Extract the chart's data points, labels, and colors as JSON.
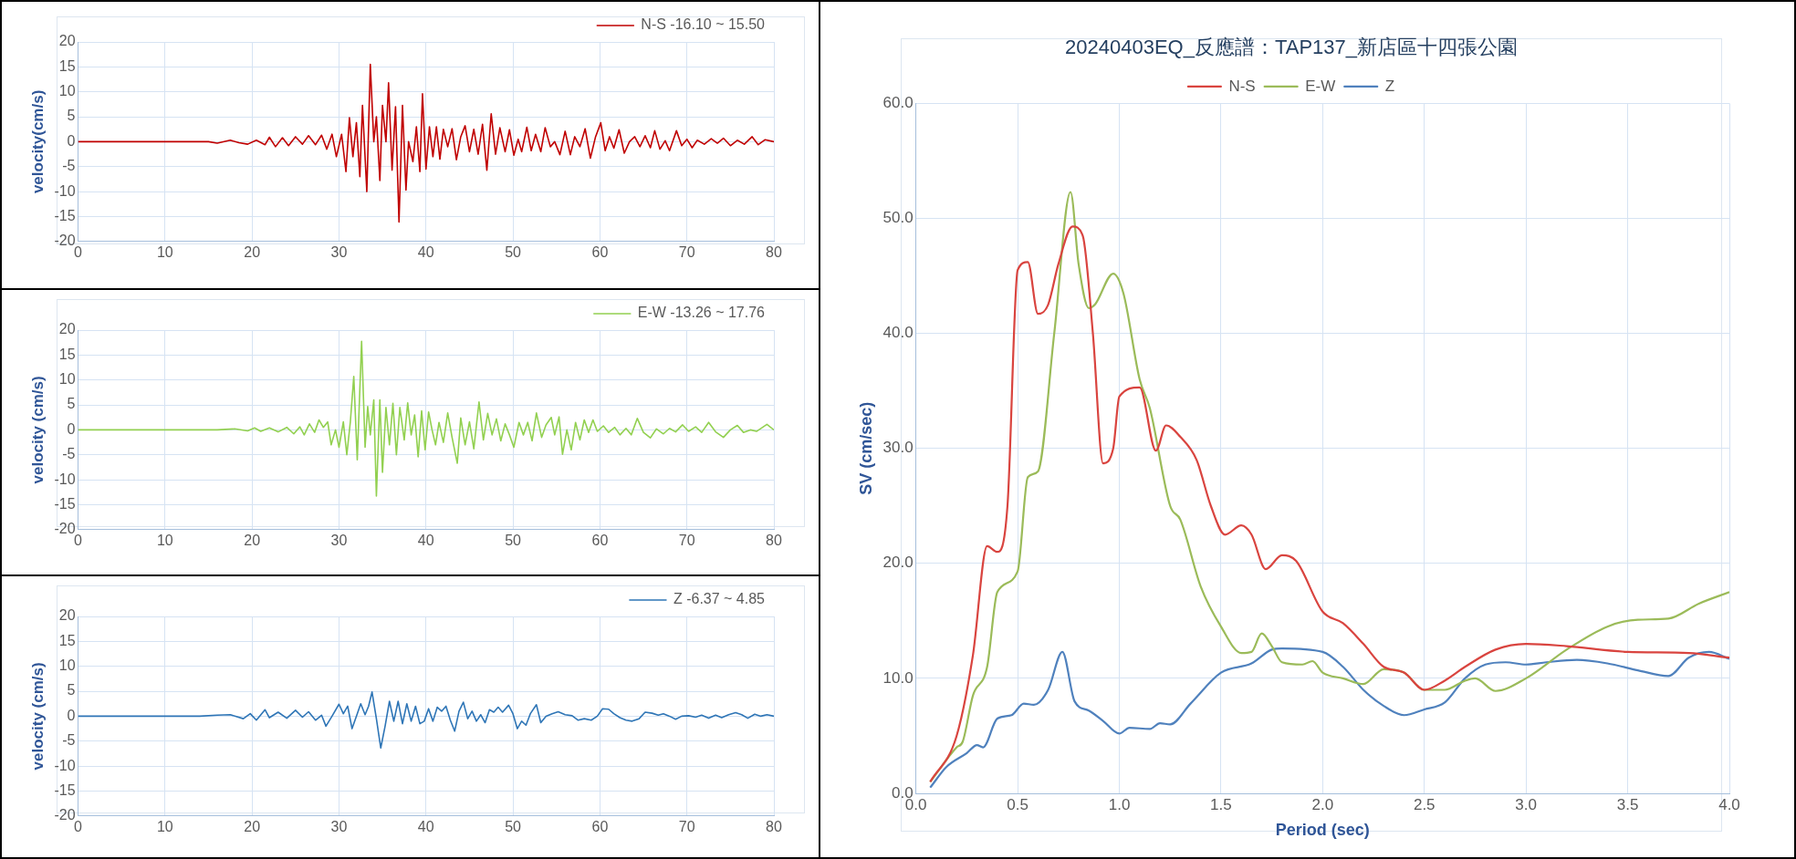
{
  "chart_data": [
    {
      "type": "line",
      "ylabel": "velocity(cm/s)",
      "xlim": [
        0,
        80
      ],
      "xticks": [
        0,
        10,
        20,
        30,
        40,
        50,
        60,
        70,
        80
      ],
      "ylim": [
        -20,
        20
      ],
      "yticks": [
        -20,
        -15,
        -10,
        -5,
        0,
        5,
        10,
        15,
        20
      ],
      "grid": true,
      "legend": "top right",
      "marker": "none",
      "line_style": "solid",
      "series": [
        {
          "name": "N-S -16.10 ~ 15.50",
          "color": "#c00000",
          "x": [
            0,
            15,
            16,
            17.5,
            18.5,
            19.5,
            20.5,
            21.5,
            22,
            22.7,
            23.5,
            24.2,
            25,
            25.8,
            26.5,
            27.3,
            28,
            28.6,
            29.2,
            29.7,
            30.3,
            30.8,
            31.2,
            31.6,
            32,
            32.4,
            32.7,
            33.2,
            33.6,
            34,
            34.3,
            34.7,
            35,
            35.4,
            35.7,
            36.1,
            36.5,
            36.9,
            37.3,
            37.7,
            38,
            38.5,
            38.9,
            39.3,
            39.6,
            40,
            40.4,
            40.8,
            41.2,
            41.6,
            42,
            42.5,
            43,
            43.5,
            44,
            44.5,
            45,
            45.5,
            46,
            46.5,
            47,
            47.5,
            48,
            48.5,
            49.1,
            49.6,
            50.1,
            50.6,
            51,
            51.6,
            52.1,
            52.6,
            53.2,
            53.7,
            54.3,
            54.8,
            55.4,
            56,
            56.6,
            57.1,
            57.7,
            58.3,
            58.9,
            59.5,
            60.1,
            60.6,
            61.1,
            61.6,
            62.2,
            62.8,
            63.4,
            64,
            64.6,
            65.2,
            65.8,
            66.3,
            66.9,
            67.5,
            68,
            68.8,
            69.4,
            70,
            70.6,
            71.2,
            72,
            72.8,
            73.5,
            74.2,
            75,
            75.8,
            76.6,
            77.5,
            78.2,
            79,
            80
          ],
          "values": [
            0,
            0,
            -0.3,
            0.3,
            -0.2,
            -0.5,
            0.3,
            -0.6,
            0.9,
            -1,
            0.8,
            -0.8,
            1,
            -0.5,
            1.2,
            -0.6,
            1.3,
            -1.5,
            1.5,
            -3,
            1.5,
            -6,
            4.8,
            -3,
            3.8,
            -7,
            7.3,
            -10,
            15.5,
            0,
            5,
            -7.8,
            7.3,
            0,
            11.8,
            -5.7,
            7,
            -16.1,
            7.3,
            -9.7,
            0,
            -4,
            3,
            -6,
            9.6,
            -5.5,
            3,
            -3,
            3,
            -3.5,
            2.5,
            -1,
            2.6,
            -3.6,
            1,
            3.2,
            -2,
            2.5,
            -2.5,
            3.5,
            -5.7,
            5.6,
            -2.5,
            2.8,
            -2,
            2.4,
            -2.7,
            0.5,
            -2,
            2.9,
            -1.8,
            1.5,
            -2,
            2.8,
            -1,
            0,
            -2.6,
            2.1,
            -2.6,
            1,
            -1,
            2.6,
            -3.3,
            1,
            3.8,
            -1.8,
            1,
            -1.3,
            2.4,
            -2.3,
            0,
            1,
            -1,
            1.2,
            -1.2,
            2.2,
            -1.5,
            0.2,
            -1.8,
            2.2,
            -0.8,
            0.5,
            -1.2,
            0.3,
            -0.5,
            0.6,
            -0.3,
            0.7,
            -0.8,
            0.3,
            -0.5,
            1,
            -0.6,
            0.4,
            0
          ]
        }
      ]
    },
    {
      "type": "line",
      "ylabel": "velocity (cm/s)",
      "xlim": [
        0,
        80
      ],
      "xticks": [
        0,
        10,
        20,
        30,
        40,
        50,
        60,
        70,
        80
      ],
      "ylim": [
        -20,
        20
      ],
      "yticks": [
        -20,
        -15,
        -10,
        -5,
        0,
        5,
        10,
        15,
        20
      ],
      "grid": true,
      "legend": "top right",
      "marker": "none",
      "line_style": "solid",
      "series": [
        {
          "name": "E-W -13.26 ~ 17.76",
          "color": "#92d050",
          "x": [
            0,
            16,
            18,
            19.5,
            20.3,
            21,
            22,
            23,
            24,
            24.8,
            25.5,
            26,
            26.6,
            27.2,
            27.7,
            28.2,
            28.7,
            29.1,
            29.6,
            30,
            30.5,
            30.9,
            31.3,
            31.7,
            32.1,
            32.6,
            33,
            33.3,
            33.6,
            34,
            34.3,
            34.7,
            35,
            35.4,
            35.8,
            36.2,
            36.6,
            37,
            37.5,
            37.9,
            38.3,
            38.7,
            39.1,
            39.5,
            39.9,
            40.3,
            40.7,
            41.1,
            41.5,
            42,
            42.5,
            43,
            43.6,
            44,
            44.5,
            45,
            45.5,
            46.1,
            46.6,
            47.1,
            47.6,
            48.1,
            48.6,
            49.1,
            49.6,
            50.1,
            50.7,
            51.2,
            51.7,
            52.2,
            52.7,
            53.3,
            53.8,
            54.4,
            54.8,
            55.3,
            55.7,
            56.2,
            56.7,
            57.2,
            57.7,
            58.2,
            58.7,
            59.2,
            59.7,
            60.4,
            61,
            61.7,
            62.3,
            63,
            63.6,
            64.3,
            65,
            65.8,
            66.5,
            67.3,
            68,
            68.7,
            69.5,
            70.2,
            71,
            71.7,
            72.5,
            73.3,
            74.2,
            75,
            75.8,
            76.5,
            77.3,
            78,
            79.2,
            80
          ],
          "values": [
            0,
            0,
            0.2,
            -0.2,
            0.4,
            -0.3,
            0.4,
            -0.4,
            0.5,
            -0.8,
            0.6,
            -1,
            1.2,
            -0.5,
            2,
            0.5,
            1.6,
            -3,
            0,
            -3.5,
            1.6,
            -5,
            1.5,
            10.7,
            -6,
            17.76,
            -3.5,
            4.7,
            -1,
            6,
            -13.26,
            6,
            -8.5,
            4.5,
            -3,
            5.3,
            -5,
            4.5,
            -2,
            5.4,
            -1,
            3,
            -5.4,
            3.8,
            -4,
            3.6,
            0,
            -3,
            1.5,
            -2.5,
            3.4,
            -1.5,
            -6.7,
            2.4,
            -3,
            1.6,
            -3.8,
            5.6,
            -2,
            3.3,
            -1,
            2.2,
            -2.2,
            1.2,
            -1,
            -3.5,
            1.5,
            -1,
            1.5,
            -2.2,
            3.4,
            -1.5,
            1,
            2.5,
            -1,
            2.6,
            -4.9,
            0,
            -4,
            1.5,
            -2,
            2,
            -0.5,
            2,
            -0.3,
            0.8,
            -0.5,
            0.5,
            -1,
            0.3,
            -1,
            2.3,
            -0.5,
            -1.6,
            0.2,
            -0.8,
            0.3,
            -0.4,
            1,
            -0.3,
            0.6,
            -0.5,
            1.5,
            -0.4,
            -1.5,
            0,
            0.9,
            -0.5,
            0,
            -0.3,
            1.1,
            0
          ]
        }
      ]
    },
    {
      "type": "line",
      "ylabel": "velocity (cm/s)",
      "xlim": [
        0,
        80
      ],
      "xticks": [
        0,
        10,
        20,
        30,
        40,
        50,
        60,
        70,
        80
      ],
      "ylim": [
        -20,
        20
      ],
      "yticks": [
        -20,
        -15,
        -10,
        -5,
        0,
        5,
        10,
        15,
        20
      ],
      "grid": true,
      "legend": "top right",
      "marker": "none",
      "line_style": "solid",
      "series": [
        {
          "name": "Z -6.37 ~ 4.85",
          "color": "#2e75b6",
          "x": [
            0,
            14,
            16,
            17.5,
            19,
            19.8,
            20.5,
            21.5,
            22,
            23,
            24,
            25,
            25.8,
            26.5,
            27.3,
            28,
            28.5,
            29.2,
            30,
            30.5,
            31,
            31.5,
            32,
            32.5,
            33,
            33.4,
            33.8,
            34.3,
            34.8,
            35.3,
            35.8,
            36.3,
            36.8,
            37.3,
            37.8,
            38.3,
            38.8,
            39.3,
            39.8,
            40.3,
            40.8,
            41.3,
            41.8,
            42.3,
            42.8,
            43.3,
            43.8,
            44.3,
            44.8,
            45.3,
            45.8,
            46.3,
            46.8,
            47.3,
            47.8,
            48.3,
            48.8,
            49.5,
            50,
            50.5,
            51,
            51.5,
            52,
            52.7,
            53.2,
            53.8,
            54.5,
            55.2,
            56,
            56.8,
            57.5,
            58.2,
            59,
            59.7,
            60.3,
            61,
            61.6,
            62.3,
            63,
            63.7,
            64.5,
            65.2,
            66,
            66.7,
            67.3,
            68,
            68.7,
            69.4,
            70.2,
            71,
            71.7,
            72.5,
            73.3,
            74,
            74.8,
            75.6,
            76.3,
            77,
            77.8,
            78.5,
            79.2,
            80
          ],
          "values": [
            0,
            0,
            0.2,
            0.3,
            -0.5,
            0.5,
            -0.8,
            1.3,
            -0.3,
            0.8,
            -0.4,
            1.2,
            -0.2,
            0.9,
            -0.8,
            0.2,
            -2,
            0,
            2.4,
            0.5,
            2,
            -2.5,
            0,
            2.5,
            0.3,
            2,
            4.85,
            -0.5,
            -6.37,
            -2,
            3,
            -1,
            3,
            -1.5,
            2.5,
            -1,
            2,
            -1.5,
            -1,
            1.5,
            -1,
            1.8,
            1,
            2,
            -0.8,
            -3,
            1,
            2.8,
            -0.5,
            1,
            -1,
            0.3,
            -1.3,
            1.3,
            0.8,
            1.8,
            0.8,
            2.2,
            0.5,
            -2.5,
            -1,
            -1.8,
            0.5,
            2.3,
            -1.3,
            0,
            0.5,
            0.9,
            0.3,
            0.1,
            -0.8,
            -0.5,
            -0.8,
            0,
            1.5,
            1.4,
            0.5,
            -0.3,
            -0.8,
            -1,
            -0.5,
            0.8,
            0.6,
            0.2,
            0.5,
            0,
            -0.6,
            0,
            0.1,
            -0.2,
            0.2,
            -0.4,
            0.2,
            -0.3,
            0.3,
            0.7,
            0.3,
            -0.4,
            0.4,
            0,
            0.3,
            0
          ]
        }
      ]
    },
    {
      "type": "line",
      "title": "20240403EQ_反應譜：TAP137_新店區十四張公園",
      "xlabel": "Period (sec)",
      "ylabel": "SV (cm/sec)",
      "xlim": [
        0,
        4
      ],
      "xticks": [
        {
          "value": 0,
          "label": "0.0"
        },
        {
          "value": 0.5,
          "label": "0.5"
        },
        {
          "value": 1,
          "label": "1.0"
        },
        {
          "value": 1.5,
          "label": "1.5"
        },
        {
          "value": 2,
          "label": "2.0"
        },
        {
          "value": 2.5,
          "label": "2.5"
        },
        {
          "value": 3,
          "label": "3.0"
        },
        {
          "value": 3.5,
          "label": "3.5"
        },
        {
          "value": 4,
          "label": "4.0"
        }
      ],
      "ylim": [
        0,
        60
      ],
      "yticks": [
        {
          "value": 0,
          "label": "0.0"
        },
        {
          "value": 10,
          "label": "10.0"
        },
        {
          "value": 20,
          "label": "20.0"
        },
        {
          "value": 30,
          "label": "30.0"
        },
        {
          "value": 40,
          "label": "40.0"
        },
        {
          "value": 50,
          "label": "50.0"
        },
        {
          "value": 60,
          "label": "60.0"
        }
      ],
      "grid": true,
      "legend": "top",
      "marker": "none",
      "line_style": "solid",
      "series": [
        {
          "name": "N-S",
          "color": "#d9443f",
          "x": [
            0.07,
            0.2,
            0.28,
            0.35,
            0.4,
            0.45,
            0.5,
            0.55,
            0.6,
            0.65,
            0.7,
            0.77,
            0.82,
            0.87,
            0.92,
            0.97,
            1.0,
            1.1,
            1.18,
            1.23,
            1.3,
            1.38,
            1.45,
            1.52,
            1.6,
            1.65,
            1.72,
            1.8,
            1.87,
            2.0,
            2.1,
            2.2,
            2.3,
            2.4,
            2.5,
            2.6,
            2.7,
            2.85,
            3.0,
            3.2,
            3.5,
            3.8,
            4.0
          ],
          "values": [
            1,
            5,
            12,
            21.5,
            21,
            25,
            45.5,
            46.2,
            41.7,
            42.5,
            46,
            49.3,
            48.5,
            40,
            28.7,
            30,
            34.5,
            35.3,
            29.8,
            32,
            31,
            29,
            25,
            22.5,
            23.3,
            22.5,
            19.5,
            20.7,
            20.2,
            15.8,
            14.8,
            13,
            11,
            10.5,
            9,
            9.8,
            11,
            12.5,
            13,
            12.8,
            12.3,
            12.2,
            11.8
          ]
        },
        {
          "name": "E-W",
          "color": "#9bbb59",
          "x": [
            0.07,
            0.2,
            0.23,
            0.28,
            0.35,
            0.4,
            0.5,
            0.55,
            0.6,
            0.68,
            0.76,
            0.8,
            0.85,
            0.88,
            0.97,
            1.02,
            1.1,
            1.15,
            1.25,
            1.3,
            1.4,
            1.5,
            1.6,
            1.65,
            1.7,
            1.75,
            1.8,
            1.9,
            1.95,
            2.0,
            2.1,
            2.2,
            2.3,
            2.4,
            2.5,
            2.6,
            2.7,
            2.75,
            2.85,
            3.0,
            3.2,
            3.4,
            3.55,
            3.7,
            3.85,
            4.0
          ],
          "values": [
            1,
            4,
            4.5,
            8.5,
            11,
            17.5,
            19.3,
            27.5,
            28,
            40,
            52.3,
            46,
            42.2,
            42.5,
            45.2,
            43.5,
            36,
            33.5,
            25,
            23.8,
            18,
            14.5,
            12.2,
            12.3,
            13.9,
            12.8,
            11.4,
            11.2,
            11.5,
            10.5,
            10,
            9.5,
            10.8,
            10.5,
            9,
            9,
            9.8,
            10,
            8.9,
            10,
            12.5,
            14.5,
            15.1,
            15.2,
            16.5,
            17.5
          ]
        },
        {
          "name": "Z",
          "color": "#4f81bd",
          "x": [
            0.07,
            0.15,
            0.25,
            0.3,
            0.33,
            0.4,
            0.47,
            0.53,
            0.58,
            0.65,
            0.72,
            0.78,
            0.85,
            0.92,
            1.0,
            1.05,
            1.15,
            1.2,
            1.25,
            1.35,
            1.5,
            1.65,
            1.75,
            1.8,
            2.0,
            2.1,
            2.2,
            2.3,
            2.4,
            2.5,
            2.6,
            2.7,
            2.8,
            2.9,
            3.0,
            3.1,
            3.25,
            3.4,
            3.55,
            3.7,
            3.8,
            3.9,
            4.0
          ],
          "values": [
            0.5,
            2.3,
            3.5,
            4.2,
            4,
            6.5,
            6.8,
            7.8,
            7.7,
            9,
            12.3,
            8,
            7.2,
            6.3,
            5.2,
            5.7,
            5.6,
            6.1,
            6,
            7.8,
            10.5,
            11.3,
            12.5,
            12.6,
            12.3,
            11,
            9,
            7.6,
            6.8,
            7.3,
            7.9,
            10,
            11.2,
            11.4,
            11.2,
            11.4,
            11.6,
            11.3,
            10.7,
            10.2,
            11.8,
            12.3,
            11.7
          ]
        }
      ]
    }
  ]
}
